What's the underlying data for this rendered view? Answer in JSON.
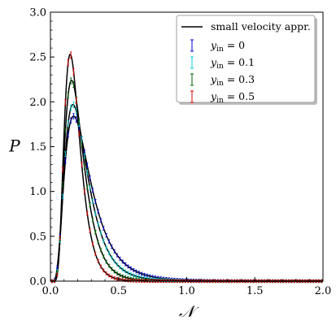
{
  "chart_data": {
    "type": "line",
    "xlabel": "𝒩",
    "ylabel": "P",
    "xlim": [
      0.0,
      2.0
    ],
    "ylim": [
      0.0,
      3.0
    ],
    "xticks": [
      "0.0",
      "0.5",
      "1.0",
      "1.5",
      "2.0"
    ],
    "yticks": [
      "0.0",
      "0.5",
      "1.0",
      "1.5",
      "2.0",
      "2.5",
      "3.0"
    ],
    "legend_position": "top-right",
    "grid": false,
    "approximation_label": "small velocity appr.",
    "series": [
      {
        "name": "y_in = 0",
        "label_main": "y",
        "label_sub": "in",
        "label_value": " = 0",
        "color": "#0000cc",
        "peak_x": 0.17,
        "peak_y": 1.84,
        "spread": 0.55,
        "marker_step": 0.02
      },
      {
        "name": "y_in = 0.1",
        "label_main": "y",
        "label_sub": "in",
        "label_value": " = 0.1",
        "color": "#00cccc",
        "peak_x": 0.165,
        "peak_y": 1.97,
        "spread": 0.5,
        "marker_step": 0.02
      },
      {
        "name": "y_in = 0.3",
        "label_main": "y",
        "label_sub": "in",
        "label_value": " = 0.3",
        "color": "#006400",
        "peak_x": 0.155,
        "peak_y": 2.24,
        "spread": 0.45,
        "marker_step": 0.02
      },
      {
        "name": "y_in = 0.5",
        "label_main": "y",
        "label_sub": "in",
        "label_value": " = 0.5",
        "color": "#dd0000",
        "peak_x": 0.145,
        "peak_y": 2.53,
        "spread": 0.4,
        "marker_step": 0.02
      }
    ]
  }
}
